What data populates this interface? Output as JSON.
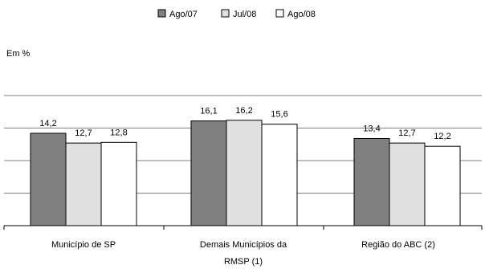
{
  "chart_data": {
    "type": "bar",
    "unit_label": "Em %",
    "categories": [
      [
        "Município de SP"
      ],
      [
        "Demais Municípios da",
        "RMSP (1)"
      ],
      [
        "Região do ABC (2)"
      ]
    ],
    "series": [
      {
        "name": "Ago/07",
        "color": "#808080",
        "values": [
          14.2,
          16.1,
          13.4
        ],
        "labels": [
          "14,2",
          "16,1",
          "13,4"
        ]
      },
      {
        "name": "Jul/08",
        "color": "#e0e0e0",
        "values": [
          12.7,
          16.2,
          12.7
        ],
        "labels": [
          "12,7",
          "16,2",
          "12,7"
        ]
      },
      {
        "name": "Ago/08",
        "color": "#ffffff",
        "values": [
          12.8,
          15.6,
          12.2
        ],
        "labels": [
          "12,8",
          "15,6",
          "12,2"
        ]
      }
    ],
    "ylim": [
      0,
      20
    ],
    "grid": true,
    "legend_position": "top-center",
    "gridline_color": "#808080",
    "axis_color": "#000000",
    "bar_stroke_color": "#000000"
  }
}
